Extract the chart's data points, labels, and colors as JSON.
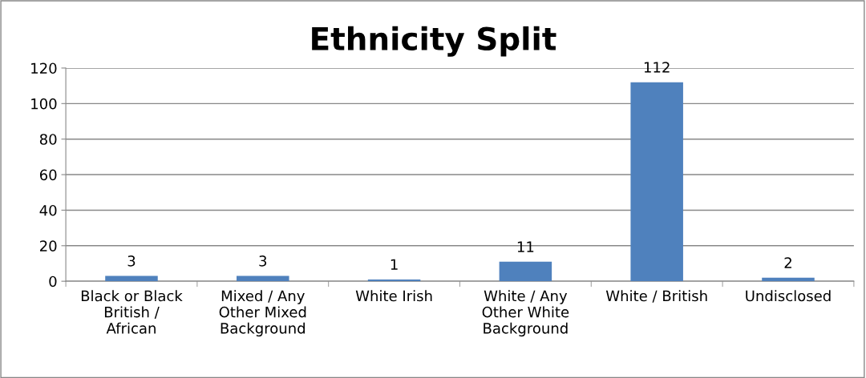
{
  "chart_data": {
    "type": "bar",
    "title": "Ethnicity Split",
    "categories": [
      "Black or Black\nBritish /\nAfrican",
      "Mixed / Any\nOther Mixed\nBackground",
      "White Irish",
      "White / Any\nOther White\nBackground",
      "White / British",
      "Undisclosed"
    ],
    "values": [
      3,
      3,
      1,
      11,
      112,
      2
    ],
    "color": "#4f81bd",
    "ylim": [
      0,
      120
    ],
    "yticks": [
      0,
      20,
      40,
      60,
      80,
      100,
      120
    ],
    "grid": "y",
    "data_labels": true
  }
}
